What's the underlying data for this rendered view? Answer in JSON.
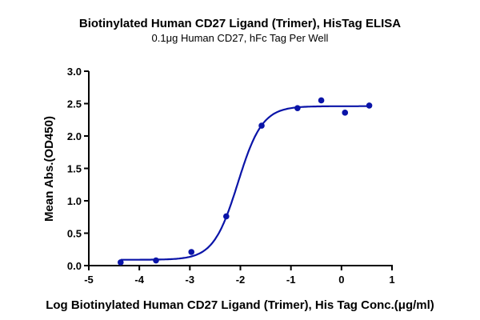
{
  "chart_data": {
    "type": "scatter",
    "title": "Biotinylated Human CD27 Ligand (Trimer), HisTag ELISA",
    "subtitle": "0.1μg Human CD27, hFc Tag Per Well",
    "xlabel": "Log Biotinylated Human CD27 Ligand (Trimer), His Tag Conc.(μg/ml)",
    "ylabel": "Mean Abs.(OD450)",
    "xlim": [
      -5,
      1
    ],
    "ylim": [
      0,
      3
    ],
    "xticks": [
      "-5",
      "-4",
      "-3",
      "-2",
      "-1",
      "0",
      "1"
    ],
    "yticks": [
      "0.0",
      "0.5",
      "1.0",
      "1.5",
      "2.0",
      "2.5",
      "3.0"
    ],
    "grid": false,
    "color": "#0a14a8",
    "series": [
      {
        "x": [
          -4.37,
          -3.67,
          -2.97,
          -2.28,
          -1.58,
          -0.87,
          -0.4,
          0.07,
          0.55
        ],
        "y": [
          0.05,
          0.08,
          0.21,
          0.76,
          2.16,
          2.43,
          2.55,
          2.36,
          2.47
        ]
      }
    ],
    "fit": {
      "model": "4PL",
      "bottom": 0.09,
      "top": 2.46,
      "logEC50": -2.05,
      "hill": 1.8
    }
  }
}
